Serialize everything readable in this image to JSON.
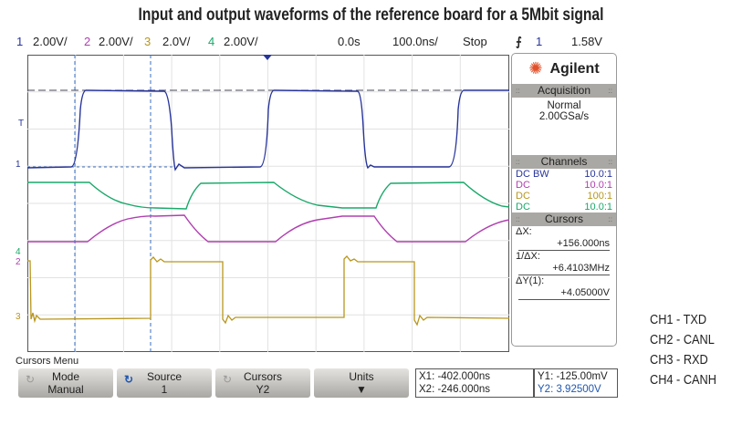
{
  "title": "Input and output waveforms of the reference board for a 5Mbit signal",
  "status": {
    "ch1_num": "1",
    "ch1_scale": "2.00V/",
    "ch2_num": "2",
    "ch2_scale": "2.00V/",
    "ch3_num": "3",
    "ch3_scale": "2.0V/",
    "ch4_num": "4",
    "ch4_scale": "2.00V/",
    "delay": "0.0s",
    "timebase": "100.0ns/",
    "run_state": "Stop",
    "trigger_icon": "rising-edge-icon",
    "trigger_source": "1",
    "trigger_level": "1.58V"
  },
  "colors": {
    "ch1": "#27349a",
    "ch2": "#b040b0",
    "ch3": "#b8961e",
    "ch4": "#1aa86a"
  },
  "markers": {
    "trigger": "T",
    "ch1": "1",
    "ch2": "2",
    "ch3": "3",
    "ch4": "4"
  },
  "panel": {
    "brand": "Agilent",
    "acquisition_header": "Acquisition",
    "acq_mode": "Normal",
    "acq_rate": "2.00GSa/s",
    "channels_header": "Channels",
    "channels": [
      {
        "coupling": "DC BW",
        "probe": "10.0:1"
      },
      {
        "coupling": "DC",
        "probe": "10.0:1"
      },
      {
        "coupling": "DC",
        "probe": "100:1"
      },
      {
        "coupling": "DC",
        "probe": "10.0:1"
      }
    ],
    "cursors_header": "Cursors",
    "dx_label": "ΔX:",
    "dx_value": "+156.000ns",
    "inv_dx_label": "1/ΔX:",
    "inv_dx_value": "+6.4103MHz",
    "dy_label": "ΔY(1):",
    "dy_value": "+4.05000V"
  },
  "menu": {
    "label": "Cursors Menu",
    "softkeys": [
      {
        "title": "Mode",
        "value": "Manual"
      },
      {
        "title": "Source",
        "value": "1"
      },
      {
        "title": "Cursors",
        "value": "Y2"
      },
      {
        "title": "Units",
        "value": "▼"
      }
    ],
    "x1": "X1: -402.000ns",
    "x2": "X2: -246.000ns",
    "y1": "Y1: -125.00mV",
    "y2": "Y2: 3.92500V"
  },
  "legend": [
    "CH1 - TXD",
    "CH2 - CANL",
    "CH3 - RXD",
    "CH4 - CANH"
  ]
}
